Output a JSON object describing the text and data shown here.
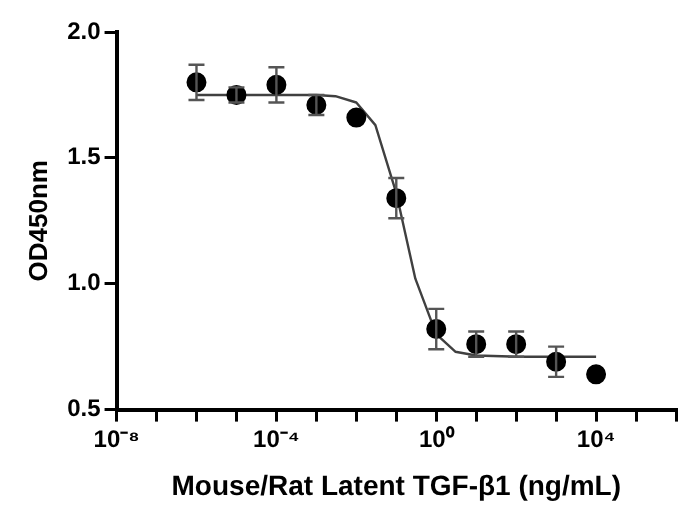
{
  "chart_data": {
    "type": "scatter",
    "xlabel": "Mouse/Rat Latent TGF-β1 (ng/mL)",
    "ylabel": "OD450nm",
    "log": "x",
    "grid": false,
    "legend": false,
    "xlim": [
      1e-08,
      1000000.0
    ],
    "xticks": [
      {
        "value": 1e-08,
        "label": "10⁻⁸"
      },
      {
        "value": 1e-07,
        "label": null
      },
      {
        "value": 1e-06,
        "label": null
      },
      {
        "value": 1e-05,
        "label": null
      },
      {
        "value": 0.0001,
        "label": "10⁻⁴"
      },
      {
        "value": 0.001,
        "label": null
      },
      {
        "value": 0.01,
        "label": null
      },
      {
        "value": 0.1,
        "label": null
      },
      {
        "value": 1,
        "label": "10⁰"
      },
      {
        "value": 10,
        "label": null
      },
      {
        "value": 100,
        "label": null
      },
      {
        "value": 1000,
        "label": null
      },
      {
        "value": 10000,
        "label": "10⁴"
      },
      {
        "value": 100000,
        "label": null
      },
      {
        "value": 1000000,
        "label": null
      }
    ],
    "ylim": [
      0.5,
      2.0
    ],
    "yticks": [
      {
        "value": 0.5,
        "label": "0.5"
      },
      {
        "value": 1,
        "label": "1.0"
      },
      {
        "value": 1.5,
        "label": "1.5"
      },
      {
        "value": 2,
        "label": "2.0"
      }
    ],
    "series": [
      {
        "color": "#000000",
        "marker": "circle",
        "x": [
          1e-06,
          1e-05,
          0.0001,
          0.001,
          0.01,
          0.1,
          1,
          10,
          100,
          1000,
          10000
        ],
        "values": [
          1.8,
          1.75,
          1.79,
          1.71,
          1.66,
          1.34,
          0.82,
          0.76,
          0.76,
          0.69,
          0.64
        ],
        "errors": [
          0.07,
          0.03,
          0.07,
          0.04,
          null,
          0.08,
          0.08,
          0.05,
          0.05,
          0.06,
          null
        ]
      },
      {
        "type": "line",
        "color": "#404040",
        "marker": "none",
        "line_style": "solid",
        "x": [
          1e-06,
          0.001,
          0.003,
          0.01,
          0.03,
          0.1,
          0.3,
          1,
          3,
          10,
          100,
          10000
        ],
        "values": [
          1.75,
          1.75,
          1.745,
          1.72,
          1.63,
          1.36,
          1.02,
          0.8,
          0.73,
          0.715,
          0.71,
          0.71
        ]
      }
    ]
  }
}
